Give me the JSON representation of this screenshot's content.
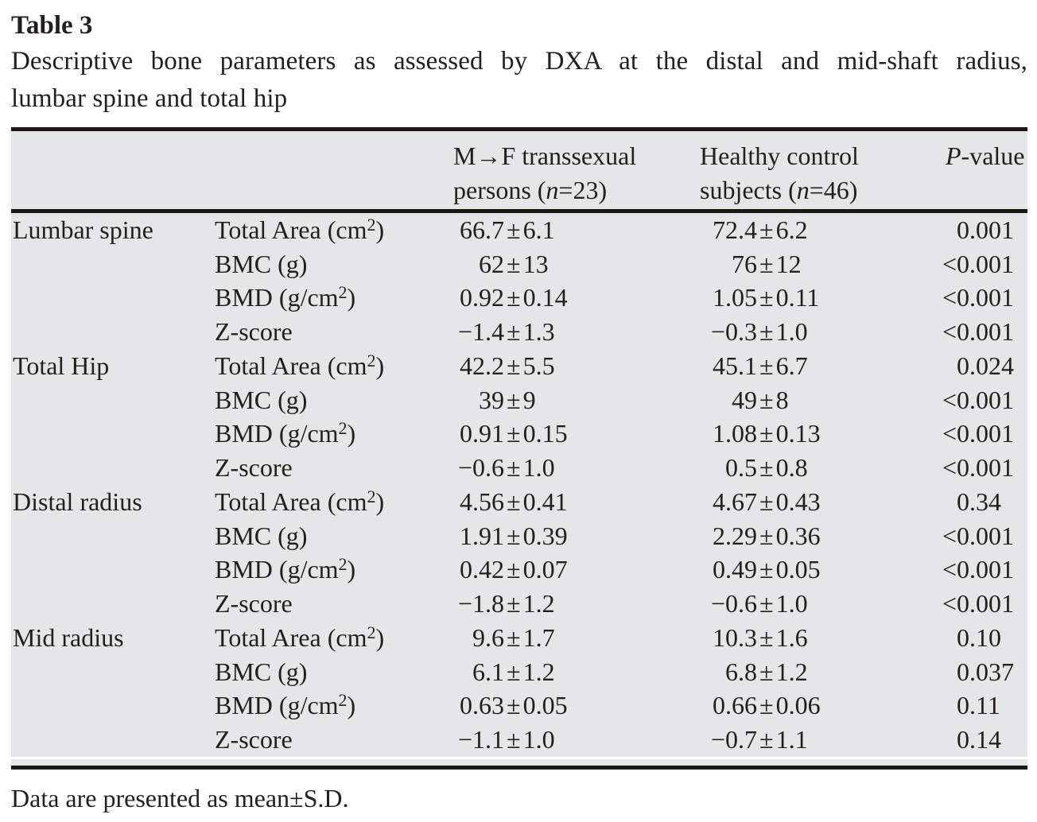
{
  "caption": {
    "label": "Table 3",
    "description": "Descriptive bone parameters as assessed by DXA at the distal and mid-shaft radius, lumbar spine and total hip"
  },
  "table": {
    "header": {
      "site": "",
      "parameter": "",
      "group1": "M→F transsexual persons (n=23)",
      "group2": "Healthy control subjects (n=46)",
      "p": "P-value"
    },
    "rows": [
      {
        "site": "Lumbar spine",
        "param": "Total Area (cm²)",
        "g1": "66.7±6.1",
        "g2": "72.4±6.2",
        "p": "0.001"
      },
      {
        "site": "",
        "param": "BMC (g)",
        "g1": "62±13",
        "g2": "76±12",
        "p": "<0.001"
      },
      {
        "site": "",
        "param": "BMD (g/cm²)",
        "g1": "0.92±0.14",
        "g2": "1.05±0.11",
        "p": "<0.001"
      },
      {
        "site": "",
        "param": "Z-score",
        "g1": "−1.4±1.3",
        "g2": "−0.3±1.0",
        "p": "<0.001"
      },
      {
        "site": "Total Hip",
        "param": "Total Area (cm²)",
        "g1": "42.2±5.5",
        "g2": "45.1±6.7",
        "p": "0.024"
      },
      {
        "site": "",
        "param": "BMC (g)",
        "g1": "39±9",
        "g2": "49±8",
        "p": "<0.001"
      },
      {
        "site": "",
        "param": "BMD (g/cm²)",
        "g1": "0.91±0.15",
        "g2": "1.08±0.13",
        "p": "<0.001"
      },
      {
        "site": "",
        "param": "Z-score",
        "g1": "−0.6±1.0",
        "g2": "0.5±0.8",
        "p": "<0.001"
      },
      {
        "site": "Distal radius",
        "param": "Total Area (cm²)",
        "g1": "4.56±0.41",
        "g2": "4.67±0.43",
        "p": "0.34"
      },
      {
        "site": "",
        "param": "BMC (g)",
        "g1": "1.91±0.39",
        "g2": "2.29±0.36",
        "p": "<0.001"
      },
      {
        "site": "",
        "param": "BMD (g/cm²)",
        "g1": "0.42±0.07",
        "g2": "0.49±0.05",
        "p": "<0.001"
      },
      {
        "site": "",
        "param": "Z-score",
        "g1": "−1.8±1.2",
        "g2": "−0.6±1.0",
        "p": "<0.001"
      },
      {
        "site": "Mid radius",
        "param": "Total Area (cm²)",
        "g1": "9.6±1.7",
        "g2": "10.3±1.6",
        "p": "0.10"
      },
      {
        "site": "",
        "param": "BMC (g)",
        "g1": "6.1±1.2",
        "g2": "6.8±1.2",
        "p": "0.037"
      },
      {
        "site": "",
        "param": "BMD (g/cm²)",
        "g1": "0.63±0.05",
        "g2": "0.66±0.06",
        "p": "0.11"
      },
      {
        "site": "",
        "param": "Z-score",
        "g1": "−1.1±1.0",
        "g2": "−0.7±1.1",
        "p": "0.14"
      }
    ]
  },
  "footnote": {
    "text": "Data are presented as mean±S.D."
  }
}
